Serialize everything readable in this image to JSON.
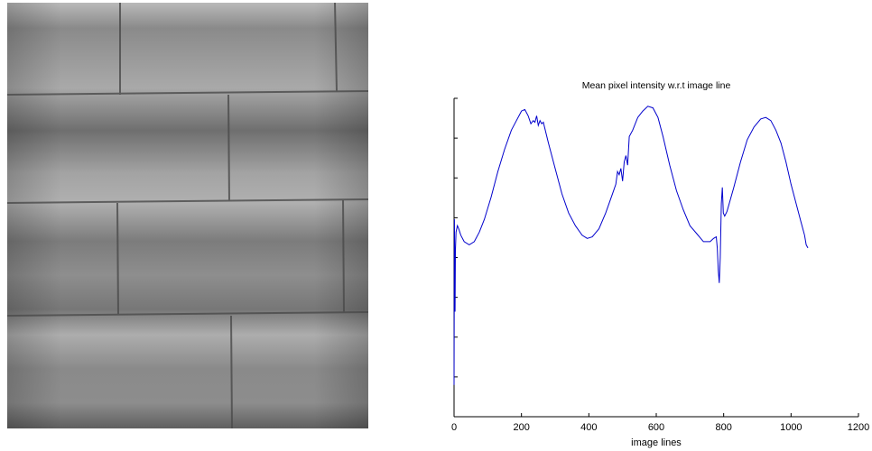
{
  "image_panel": {
    "description_icon": "brick-wall-photo"
  },
  "chart_data": {
    "type": "line",
    "title": "Mean pixel intensity w.r.t image line",
    "xlabel": "image lines",
    "ylabel": "",
    "xlim": [
      0,
      1200
    ],
    "ylim": [
      0,
      1
    ],
    "x_ticks": [
      0,
      200,
      400,
      600,
      800,
      1000,
      1200
    ],
    "y_ticks_labeled": false,
    "grid": false,
    "series": [
      {
        "color": "#0000cc",
        "points": [
          [
            0,
            0.1
          ],
          [
            1,
            0.62
          ],
          [
            3,
            0.33
          ],
          [
            4,
            0.52
          ],
          [
            6,
            0.58
          ],
          [
            10,
            0.6
          ],
          [
            14,
            0.59
          ],
          [
            20,
            0.57
          ],
          [
            30,
            0.55
          ],
          [
            45,
            0.54
          ],
          [
            60,
            0.55
          ],
          [
            75,
            0.58
          ],
          [
            90,
            0.62
          ],
          [
            110,
            0.69
          ],
          [
            130,
            0.77
          ],
          [
            150,
            0.84
          ],
          [
            170,
            0.9
          ],
          [
            185,
            0.93
          ],
          [
            200,
            0.96
          ],
          [
            210,
            0.965
          ],
          [
            220,
            0.945
          ],
          [
            228,
            0.92
          ],
          [
            235,
            0.93
          ],
          [
            240,
            0.925
          ],
          [
            245,
            0.945
          ],
          [
            250,
            0.915
          ],
          [
            255,
            0.93
          ],
          [
            260,
            0.92
          ],
          [
            265,
            0.925
          ],
          [
            280,
            0.86
          ],
          [
            300,
            0.78
          ],
          [
            320,
            0.7
          ],
          [
            340,
            0.64
          ],
          [
            360,
            0.6
          ],
          [
            380,
            0.57
          ],
          [
            395,
            0.56
          ],
          [
            410,
            0.565
          ],
          [
            430,
            0.59
          ],
          [
            450,
            0.64
          ],
          [
            470,
            0.7
          ],
          [
            480,
            0.73
          ],
          [
            485,
            0.77
          ],
          [
            490,
            0.76
          ],
          [
            495,
            0.78
          ],
          [
            500,
            0.74
          ],
          [
            505,
            0.8
          ],
          [
            510,
            0.82
          ],
          [
            515,
            0.79
          ],
          [
            520,
            0.88
          ],
          [
            530,
            0.9
          ],
          [
            545,
            0.94
          ],
          [
            560,
            0.96
          ],
          [
            575,
            0.975
          ],
          [
            590,
            0.97
          ],
          [
            605,
            0.94
          ],
          [
            620,
            0.88
          ],
          [
            640,
            0.79
          ],
          [
            660,
            0.71
          ],
          [
            680,
            0.65
          ],
          [
            700,
            0.6
          ],
          [
            720,
            0.575
          ],
          [
            740,
            0.55
          ],
          [
            760,
            0.55
          ],
          [
            770,
            0.56
          ],
          [
            778,
            0.565
          ],
          [
            781,
            0.53
          ],
          [
            784,
            0.46
          ],
          [
            787,
            0.42
          ],
          [
            790,
            0.5
          ],
          [
            793,
            0.67
          ],
          [
            796,
            0.72
          ],
          [
            799,
            0.64
          ],
          [
            803,
            0.63
          ],
          [
            810,
            0.645
          ],
          [
            830,
            0.72
          ],
          [
            850,
            0.8
          ],
          [
            870,
            0.87
          ],
          [
            890,
            0.91
          ],
          [
            910,
            0.935
          ],
          [
            925,
            0.94
          ],
          [
            940,
            0.93
          ],
          [
            955,
            0.9
          ],
          [
            970,
            0.86
          ],
          [
            985,
            0.8
          ],
          [
            1000,
            0.73
          ],
          [
            1015,
            0.67
          ],
          [
            1030,
            0.61
          ],
          [
            1040,
            0.57
          ],
          [
            1045,
            0.54
          ],
          [
            1050,
            0.53
          ]
        ]
      }
    ]
  }
}
